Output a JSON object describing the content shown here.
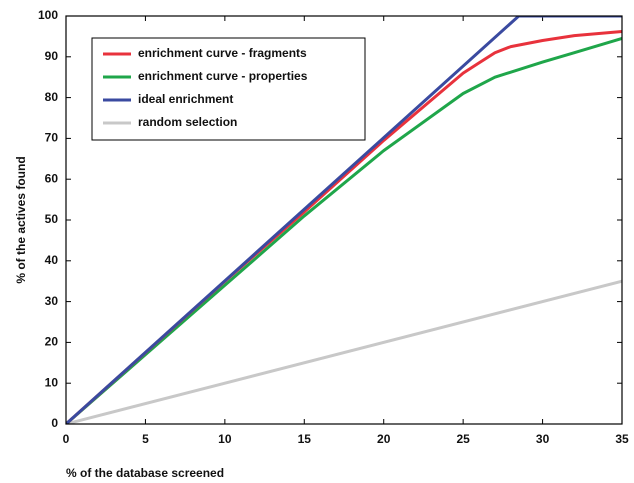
{
  "chart_data": {
    "type": "line",
    "xlabel": "% of the database screened",
    "ylabel": "% of the actives found",
    "xlim": [
      0,
      35
    ],
    "ylim": [
      0,
      100
    ],
    "xticks": [
      0,
      5,
      10,
      15,
      20,
      25,
      30,
      35
    ],
    "yticks": [
      0,
      10,
      20,
      30,
      40,
      50,
      60,
      70,
      80,
      90,
      100
    ],
    "legend": "upper left",
    "series": [
      {
        "name": "enrichment curve - fragments",
        "color": "#e8323c",
        "x": [
          0,
          5,
          10,
          15,
          20,
          25,
          26,
          27,
          28,
          30,
          32,
          35
        ],
        "values": [
          0,
          17.5,
          35,
          52,
          69.5,
          86,
          88.5,
          91,
          92.5,
          94,
          95.2,
          96.2
        ]
      },
      {
        "name": "enrichment curve - properties",
        "color": "#1fa64a",
        "x": [
          0,
          5,
          10,
          15,
          20,
          25,
          27,
          30,
          32,
          35
        ],
        "values": [
          0,
          17,
          34,
          51,
          67,
          81,
          85,
          88.7,
          91,
          94.5
        ]
      },
      {
        "name": "ideal enrichment",
        "color": "#3a4aa0",
        "x": [
          0,
          28.5,
          35
        ],
        "values": [
          0,
          100,
          100
        ]
      },
      {
        "name": "random selection",
        "color": "#c8c8c8",
        "x": [
          0,
          35
        ],
        "values": [
          0,
          35
        ]
      }
    ]
  }
}
